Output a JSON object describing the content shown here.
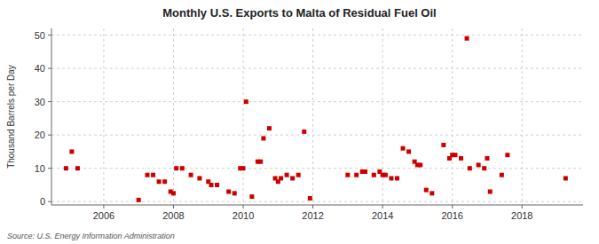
{
  "chart_data": {
    "type": "scatter",
    "title": "Monthly U.S. Exports to Malta of Residual Fuel Oil",
    "ylabel": "Thousand Barrels per Day",
    "source": "Source: U.S. Energy Information Administration",
    "color": "#cc0000",
    "marker": "square",
    "grid": true,
    "xlim": [
      2004.5,
      2019.75
    ],
    "ylim": [
      -1,
      52
    ],
    "xticks": [
      2006,
      2008,
      2010,
      2012,
      2014,
      2016,
      2018
    ],
    "yticks": [
      0,
      10,
      20,
      30,
      40,
      50
    ],
    "x": [
      2004.917,
      2005.083,
      2005.25,
      2007.0,
      2007.25,
      2007.417,
      2007.583,
      2007.75,
      2007.917,
      2008.0,
      2008.083,
      2008.25,
      2008.5,
      2008.75,
      2009.0,
      2009.083,
      2009.25,
      2009.583,
      2009.75,
      2009.917,
      2010.0,
      2010.083,
      2010.25,
      2010.417,
      2010.5,
      2010.583,
      2010.75,
      2010.917,
      2011.0,
      2011.083,
      2011.25,
      2011.417,
      2011.583,
      2011.75,
      2011.917,
      2013.0,
      2013.25,
      2013.417,
      2013.5,
      2013.75,
      2013.917,
      2014.0,
      2014.083,
      2014.25,
      2014.417,
      2014.583,
      2014.75,
      2014.917,
      2015.0,
      2015.083,
      2015.25,
      2015.417,
      2015.75,
      2015.917,
      2016.0,
      2016.083,
      2016.25,
      2016.417,
      2016.5,
      2016.75,
      2016.917,
      2017.0,
      2017.083,
      2017.417,
      2017.583,
      2019.25
    ],
    "values": [
      10,
      15,
      10,
      0.5,
      8,
      8,
      6,
      6,
      3,
      2.5,
      10,
      10,
      8,
      7,
      6,
      5,
      5,
      3,
      2.5,
      10,
      10,
      30,
      1.5,
      12,
      12,
      19,
      22,
      7,
      6,
      7,
      8,
      7,
      8,
      21,
      1,
      8,
      8,
      9,
      9,
      8,
      9,
      8,
      8,
      7,
      7,
      16,
      15,
      12,
      11,
      11,
      3.5,
      2.5,
      17,
      13,
      14,
      14,
      13,
      49,
      10,
      11,
      10,
      13,
      3,
      8,
      14,
      7
    ]
  }
}
